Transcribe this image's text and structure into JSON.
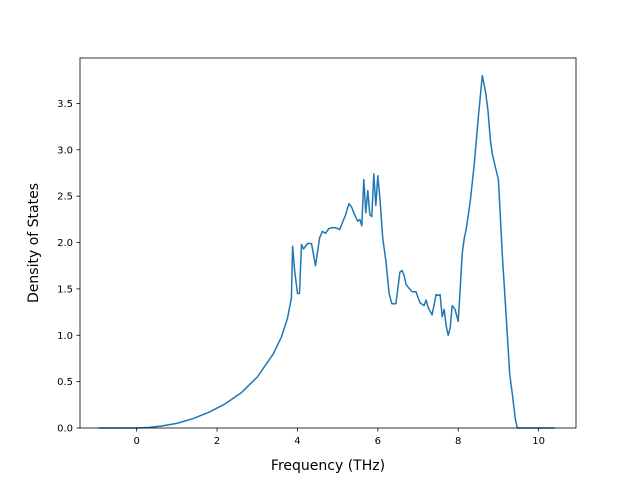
{
  "chart_data": {
    "type": "line",
    "title": "",
    "xlabel": "Frequency (THz)",
    "ylabel": "Density of States",
    "xlim": [
      -1.41,
      10.93
    ],
    "ylim": [
      0,
      3.99
    ],
    "xticks": [
      0,
      2,
      4,
      6,
      8,
      10
    ],
    "xtick_labels": [
      "0",
      "2",
      "4",
      "6",
      "8",
      "10"
    ],
    "yticks": [
      0.0,
      0.5,
      1.0,
      1.5,
      2.0,
      2.5,
      3.0,
      3.5
    ],
    "ytick_labels": [
      "0.0",
      "0.5",
      "1.0",
      "1.5",
      "2.0",
      "2.5",
      "3.0",
      "3.5"
    ],
    "grid": false,
    "colors": {
      "line": "#1f77b4",
      "axes": "#000000",
      "background": "#ffffff"
    },
    "series": [
      {
        "x": [
          -0.95,
          -0.5,
          0.0,
          0.3,
          0.6,
          1.0,
          1.4,
          1.8,
          2.2,
          2.6,
          3.0,
          3.4,
          3.6,
          3.75,
          3.85,
          3.88,
          3.93,
          4.0,
          4.05,
          4.1,
          4.15,
          4.25,
          4.35,
          4.45,
          4.55,
          4.62,
          4.7,
          4.78,
          4.85,
          4.95,
          5.05,
          5.15,
          5.2,
          5.28,
          5.35,
          5.42,
          5.5,
          5.55,
          5.6,
          5.65,
          5.7,
          5.75,
          5.8,
          5.85,
          5.9,
          5.95,
          6.0,
          6.05,
          6.12,
          6.2,
          6.28,
          6.35,
          6.45,
          6.55,
          6.6,
          6.65,
          6.7,
          6.75,
          6.85,
          6.95,
          7.05,
          7.15,
          7.2,
          7.25,
          7.35,
          7.45,
          7.5,
          7.55,
          7.6,
          7.65,
          7.7,
          7.75,
          7.8,
          7.85,
          7.92,
          8.0,
          8.05,
          8.1,
          8.15,
          8.2,
          8.3,
          8.4,
          8.5,
          8.6,
          8.68,
          8.74,
          8.8,
          8.85,
          8.92,
          9.0,
          9.1,
          9.2,
          9.28,
          9.35,
          9.42,
          9.47,
          9.5,
          9.6,
          10.0,
          10.4
        ],
        "values": [
          0.0,
          0.0,
          0.0,
          0.005,
          0.02,
          0.05,
          0.1,
          0.17,
          0.26,
          0.38,
          0.55,
          0.8,
          0.98,
          1.18,
          1.4,
          1.96,
          1.7,
          1.45,
          1.45,
          1.98,
          1.93,
          1.99,
          1.99,
          1.75,
          2.05,
          2.12,
          2.1,
          2.15,
          2.16,
          2.16,
          2.14,
          2.25,
          2.3,
          2.42,
          2.38,
          2.3,
          2.23,
          2.25,
          2.18,
          2.68,
          2.32,
          2.56,
          2.3,
          2.28,
          2.74,
          2.4,
          2.72,
          2.48,
          2.05,
          1.8,
          1.45,
          1.34,
          1.34,
          1.68,
          1.7,
          1.65,
          1.55,
          1.52,
          1.47,
          1.47,
          1.35,
          1.32,
          1.38,
          1.3,
          1.22,
          1.44,
          1.43,
          1.44,
          1.2,
          1.28,
          1.1,
          1.0,
          1.08,
          1.32,
          1.28,
          1.15,
          1.5,
          1.88,
          2.05,
          2.15,
          2.45,
          2.85,
          3.35,
          3.8,
          3.62,
          3.42,
          3.1,
          2.95,
          2.82,
          2.68,
          1.85,
          1.15,
          0.58,
          0.35,
          0.1,
          0.0,
          0.0,
          0.0,
          0.0,
          0.0
        ]
      }
    ]
  }
}
